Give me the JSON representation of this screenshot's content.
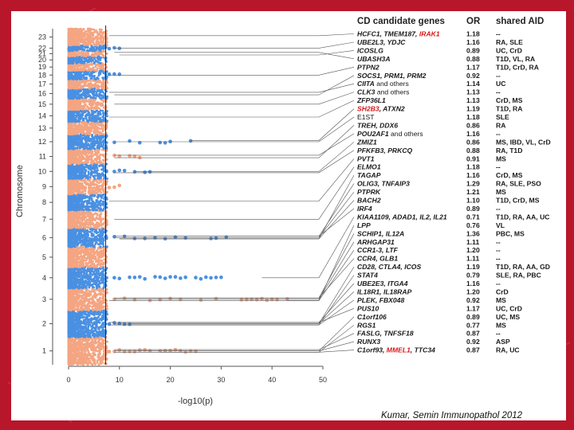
{
  "chart_data": {
    "type": "scatter",
    "title": "",
    "xlabel": "-log10(p)",
    "ylabel": "Chromosome",
    "xlim": [
      0,
      50
    ],
    "xticks": [
      0,
      10,
      20,
      30,
      40,
      50
    ],
    "threshold_x": 7.3,
    "chromosomes": [
      "1",
      "2",
      "3",
      "4",
      "5",
      "6",
      "7",
      "8",
      "9",
      "10",
      "11",
      "12",
      "13",
      "14",
      "15",
      "16",
      "17",
      "18",
      "19",
      "20",
      "21",
      "22",
      "23"
    ],
    "chromosome_tick_labels": [
      "1",
      "2",
      "3",
      "4",
      "5",
      "6",
      "7",
      "8",
      "9",
      "10",
      "11",
      "12",
      "13",
      "14",
      "15",
      "16",
      "17",
      "18",
      "19",
      "20",
      "21",
      "22",
      "23"
    ],
    "series_colors": {
      "odd": "#f4a582",
      "even": "#4a90e2"
    },
    "table_headers": {
      "genes": "CD candidate genes",
      "or": "OR",
      "aid": "shared AID"
    },
    "loci": [
      {
        "genes": [
          {
            "t": "HCFC1, TMEM187, ",
            "red": false
          },
          {
            "t": "IRAK1",
            "red": true
          }
        ],
        "or": "1.18",
        "aid": "--",
        "chr": 23,
        "maxp": 8
      },
      {
        "genes": [
          {
            "t": "UBE2L3, YDJC",
            "red": false
          }
        ],
        "or": "1.16",
        "aid": "RA, SLE",
        "chr": 22,
        "maxp": 9
      },
      {
        "genes": [
          {
            "t": "ICOSLG",
            "red": false
          }
        ],
        "or": "0.89",
        "aid": "UC, CrD",
        "chr": 21,
        "maxp": 10
      },
      {
        "genes": [
          {
            "t": "UBASH3A",
            "red": false
          }
        ],
        "or": "0.88",
        "aid": "T1D, VL, RA",
        "chr": 21,
        "maxp": 9
      },
      {
        "genes": [
          {
            "t": "PTPN2",
            "red": false
          }
        ],
        "or": "1.17",
        "aid": "T1D, CrD, RA",
        "chr": 18,
        "maxp": 8
      },
      {
        "genes": [
          {
            "t": "SOCS1, PRM1, PRM2",
            "red": false
          }
        ],
        "or": "0.92",
        "aid": "--",
        "chr": 16,
        "maxp": 9
      },
      {
        "genes": [
          {
            "t": "CIITA",
            "red": false
          },
          {
            "t": " and others",
            "red": false,
            "plain": true
          }
        ],
        "or": "1.14",
        "aid": "UC",
        "chr": 16,
        "maxp": 8
      },
      {
        "genes": [
          {
            "t": "CLK3",
            "red": false
          },
          {
            "t": " and others",
            "red": false,
            "plain": true
          }
        ],
        "or": "1.13",
        "aid": "--",
        "chr": 15,
        "maxp": 9
      },
      {
        "genes": [
          {
            "t": "ZFP36L1",
            "red": false
          }
        ],
        "or": "1.13",
        "aid": "CrD, MS",
        "chr": 14,
        "maxp": 8
      },
      {
        "genes": [
          {
            "t": "SH2B3",
            "red": true
          },
          {
            "t": ", ATXN2",
            "red": false
          }
        ],
        "or": "1.19",
        "aid": "T1D, RA",
        "chr": 12,
        "maxp": 24
      },
      {
        "genes": [
          {
            "t": "E1ST",
            "red": false,
            "plain": true
          }
        ],
        "or": "1.18",
        "aid": "SLE",
        "chr": 12,
        "maxp": 9
      },
      {
        "genes": [
          {
            "t": "TREH, DDX6",
            "red": false
          }
        ],
        "or": "0.86",
        "aid": "RA",
        "chr": 11,
        "maxp": 9
      },
      {
        "genes": [
          {
            "t": "POU2AF1",
            "red": false
          },
          {
            "t": " and others",
            "red": false,
            "plain": true
          }
        ],
        "or": "1.16",
        "aid": "--",
        "chr": 11,
        "maxp": 9
      },
      {
        "genes": [
          {
            "t": "ZMIZ1",
            "red": false
          }
        ],
        "or": "0.86",
        "aid": "MS, IBD, VL, CrD",
        "chr": 10,
        "maxp": 13
      },
      {
        "genes": [
          {
            "t": "PFKFB3, PRKCQ",
            "red": false
          }
        ],
        "or": "0.88",
        "aid": "RA, T1D",
        "chr": 10,
        "maxp": 9
      },
      {
        "genes": [
          {
            "t": "PVT1",
            "red": false
          }
        ],
        "or": "0.91",
        "aid": "MS",
        "chr": 8,
        "maxp": 8
      },
      {
        "genes": [
          {
            "t": "ELMO1",
            "red": false
          }
        ],
        "or": "1.18",
        "aid": "--",
        "chr": 7,
        "maxp": 9
      },
      {
        "genes": [
          {
            "t": "TAGAP",
            "red": false
          }
        ],
        "or": "1.16",
        "aid": "CrD, MS",
        "chr": 6,
        "maxp": 10
      },
      {
        "genes": [
          {
            "t": "OLIG3, TNFAIP3",
            "red": false
          }
        ],
        "or": "1.29",
        "aid": "RA, SLE, PSO",
        "chr": 6,
        "maxp": 16
      },
      {
        "genes": [
          {
            "t": "PTPRK",
            "red": false
          }
        ],
        "or": "1.21",
        "aid": "MS",
        "chr": 6,
        "maxp": 9
      },
      {
        "genes": [
          {
            "t": "BACH2",
            "red": false
          }
        ],
        "or": "1.10",
        "aid": "T1D, CrD, MS",
        "chr": 6,
        "maxp": 10
      },
      {
        "genes": [
          {
            "t": "IRF4",
            "red": false
          }
        ],
        "or": "0.89",
        "aid": "--",
        "chr": 6,
        "maxp": 9
      },
      {
        "genes": [
          {
            "t": "KIAA1109, ADAD1, IL2, IL21",
            "red": false
          }
        ],
        "or": "0.71",
        "aid": "T1D, RA, AA, UC",
        "chr": 4,
        "maxp": 38
      },
      {
        "genes": [
          {
            "t": "LPP",
            "red": false
          }
        ],
        "or": "0.76",
        "aid": "VL",
        "chr": 3,
        "maxp": 43
      },
      {
        "genes": [
          {
            "t": "SCHIP1, IL12A",
            "red": false
          }
        ],
        "or": "1.36",
        "aid": "PBC, MS",
        "chr": 3,
        "maxp": 10
      },
      {
        "genes": [
          {
            "t": "ARHGAP31",
            "red": false
          }
        ],
        "or": "1.11",
        "aid": "--",
        "chr": 3,
        "maxp": 9
      },
      {
        "genes": [
          {
            "t": "CCR1-3, LTF",
            "red": false
          }
        ],
        "or": "1.20",
        "aid": "--",
        "chr": 3,
        "maxp": 8
      },
      {
        "genes": [
          {
            "t": "CCR4, GLB1",
            "red": false
          }
        ],
        "or": "1.11",
        "aid": "--",
        "chr": 3,
        "maxp": 9
      },
      {
        "genes": [
          {
            "t": "CD28, CTLA4, ICOS",
            "red": false
          }
        ],
        "or": "1.19",
        "aid": "T1D, RA, AA, GD",
        "chr": 2,
        "maxp": 12
      },
      {
        "genes": [
          {
            "t": "STAT4",
            "red": false
          }
        ],
        "or": "0.79",
        "aid": "SLE, RA, PBC",
        "chr": 2,
        "maxp": 9
      },
      {
        "genes": [
          {
            "t": "UBE2E3, ITGA4",
            "red": false
          }
        ],
        "or": "1.16",
        "aid": "--",
        "chr": 2,
        "maxp": 8
      },
      {
        "genes": [
          {
            "t": "IL18R1, IL18RAP",
            "red": false
          }
        ],
        "or": "1.20",
        "aid": "CrD",
        "chr": 2,
        "maxp": 9
      },
      {
        "genes": [
          {
            "t": "PLEK, FBX048",
            "red": false
          }
        ],
        "or": "0.92",
        "aid": "MS",
        "chr": 2,
        "maxp": 8
      },
      {
        "genes": [
          {
            "t": "PUS10",
            "red": false
          }
        ],
        "or": "1.17",
        "aid": "UC, CrD",
        "chr": 2,
        "maxp": 10
      },
      {
        "genes": [
          {
            "t": "C1orf106",
            "red": false
          }
        ],
        "or": "0.89",
        "aid": "UC, MS",
        "chr": 1,
        "maxp": 9
      },
      {
        "genes": [
          {
            "t": "RGS1",
            "red": false
          }
        ],
        "or": "0.77",
        "aid": "MS",
        "chr": 1,
        "maxp": 18
      },
      {
        "genes": [
          {
            "t": "FASLG, TNFSF18",
            "red": false
          }
        ],
        "or": "0.87",
        "aid": "--",
        "chr": 1,
        "maxp": 9
      },
      {
        "genes": [
          {
            "t": "RUNX3",
            "red": false
          }
        ],
        "or": "0.92",
        "aid": "ASP",
        "chr": 1,
        "maxp": 13
      },
      {
        "genes": [
          {
            "t": "C1orf93, ",
            "red": false
          },
          {
            "t": "MMEL1",
            "red": true
          },
          {
            "t": ", TTC34",
            "red": false
          }
        ],
        "or": "0.87",
        "aid": "RA, UC",
        "chr": 1,
        "maxp": 9
      }
    ],
    "hits": [
      {
        "chr": 6,
        "x": [
          9,
          11,
          13,
          15,
          17,
          19,
          21,
          23,
          28,
          29,
          31
        ]
      },
      {
        "chr": 4,
        "x": [
          9,
          10,
          12,
          13,
          14,
          15,
          17,
          18,
          19,
          20,
          21,
          22,
          23,
          25,
          26,
          27,
          28,
          29,
          30
        ]
      },
      {
        "chr": 3,
        "x": [
          9,
          11,
          13,
          16,
          18,
          20,
          22,
          26,
          29,
          34,
          35,
          36,
          37,
          38,
          39,
          40,
          41,
          43
        ]
      },
      {
        "chr": 1,
        "x": [
          8,
          9,
          10,
          11,
          12,
          13,
          14,
          15,
          16,
          18,
          19,
          20,
          21,
          22,
          23,
          24,
          25
        ]
      },
      {
        "chr": 12,
        "x": [
          9,
          12,
          14,
          18,
          19,
          20,
          24
        ]
      },
      {
        "chr": 11,
        "x": [
          9,
          10,
          12,
          13,
          14
        ]
      },
      {
        "chr": 10,
        "x": [
          9,
          10,
          11,
          13,
          15,
          16
        ]
      },
      {
        "chr": 22,
        "x": [
          8,
          9,
          10
        ]
      },
      {
        "chr": 2,
        "x": [
          8,
          9,
          10,
          11,
          12
        ]
      },
      {
        "chr": 18,
        "x": [
          8,
          9,
          10
        ]
      },
      {
        "chr": 9,
        "x": [
          8,
          9,
          10
        ]
      }
    ]
  },
  "citation": "Kumar, Semin Immunopathol 2012"
}
